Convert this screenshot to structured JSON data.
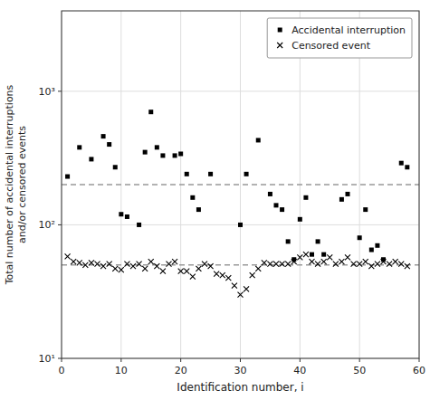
{
  "chart_data": {
    "type": "scatter",
    "xlabel": "Identification number, i",
    "ylabel": "Total number of accidental interruptions\nand/or censored events",
    "log": "y",
    "grid": true,
    "legend": "upper right",
    "xlim": [
      0,
      60
    ],
    "xticks": [
      0,
      10,
      20,
      30,
      40,
      50,
      60
    ],
    "ylim": [
      10,
      4000
    ],
    "yticks": [
      {
        "value": 10,
        "label": "10¹"
      },
      {
        "value": 100,
        "label": "10²"
      },
      {
        "value": 1000,
        "label": "10³"
      }
    ],
    "series": [
      {
        "name": "Accidental interruption",
        "color": "#000000",
        "marker": "square",
        "x": [
          1,
          3,
          5,
          7,
          8,
          9,
          10,
          11,
          13,
          14,
          15,
          16,
          17,
          19,
          20,
          21,
          22,
          23,
          25,
          30,
          31,
          33,
          35,
          36,
          37,
          38,
          39,
          40,
          41,
          42,
          43,
          44,
          47,
          48,
          50,
          51,
          52,
          53,
          54,
          57,
          58
        ],
        "values": [
          230,
          380,
          310,
          460,
          400,
          270,
          120,
          115,
          100,
          350,
          700,
          380,
          330,
          330,
          340,
          240,
          160,
          130,
          240,
          100,
          240,
          430,
          170,
          140,
          130,
          75,
          55,
          110,
          160,
          60,
          75,
          60,
          155,
          170,
          80,
          130,
          65,
          70,
          55,
          290,
          270
        ]
      },
      {
        "name": "Censored event",
        "color": "#000000",
        "marker": "x",
        "x": [
          1,
          2,
          3,
          4,
          5,
          6,
          7,
          8,
          9,
          10,
          11,
          12,
          13,
          14,
          15,
          16,
          17,
          18,
          19,
          20,
          21,
          22,
          23,
          24,
          25,
          26,
          27,
          28,
          29,
          30,
          31,
          32,
          33,
          34,
          35,
          36,
          37,
          38,
          39,
          40,
          41,
          42,
          43,
          44,
          45,
          46,
          47,
          48,
          49,
          50,
          51,
          52,
          53,
          54,
          55,
          56,
          57,
          58
        ],
        "values": [
          58,
          53,
          52,
          50,
          52,
          51,
          49,
          51,
          47,
          46,
          51,
          49,
          51,
          47,
          53,
          49,
          45,
          51,
          53,
          45,
          45,
          41,
          47,
          51,
          49,
          43,
          42,
          40,
          35,
          30,
          33,
          42,
          47,
          52,
          51,
          51,
          51,
          51,
          53,
          57,
          60,
          53,
          51,
          53,
          57,
          51,
          53,
          57,
          51,
          51,
          53,
          49,
          51,
          53,
          51,
          53,
          51,
          49
        ]
      }
    ],
    "hlines": [
      {
        "value": 200,
        "color": "#999999",
        "line_style": "dashed"
      },
      {
        "value": 50,
        "color": "#999999",
        "line_style": "dashed"
      }
    ]
  }
}
